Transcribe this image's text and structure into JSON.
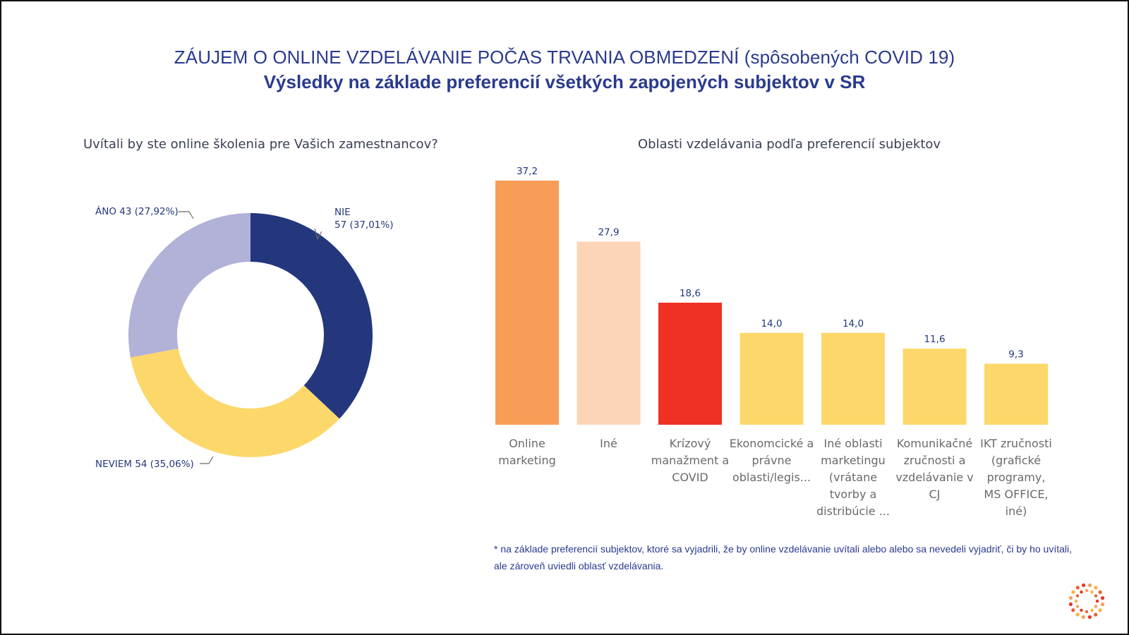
{
  "header": {
    "title": "ZÁUJEM O ONLINE VZDELÁVANIE POČAS TRVANIA OBMEDZENÍ (spôsobených COVID 19)",
    "subtitle": "Výsledky na základe preferencií všetkých zapojených subjektov v SR"
  },
  "footnote": "* na základe preferencií subjektov, ktoré sa vyjadrili, že by online vzdelávanie uvítali alebo alebo sa nevedeli vyjadriť, či by ho uvítali, ale zároveň uviedli oblasť vzdelávania.",
  "logo_icon": "dotted-circle-logo-icon",
  "colors": {
    "title": "#2a3a8f",
    "nie": "#24377d",
    "neviem": "#fcd86b",
    "ano": "#b2b1d8",
    "bar_orange": "#f89d57",
    "bar_peach": "#fcd5b8",
    "bar_red": "#ee3124",
    "bar_yellow": "#fcd86b"
  },
  "chart_data": [
    {
      "type": "pie",
      "title": "Uvítali by ste online školenia pre Vašich zamestnancov?",
      "slices": [
        {
          "name": "NIE",
          "value": 57,
          "percent": "37,01%",
          "label_lines": [
            "NIE",
            "57 (37,01%)"
          ],
          "color": "#24377d"
        },
        {
          "name": "NEVIEM",
          "value": 54,
          "percent": "35,06%",
          "label_lines": [
            "NEVIEM 54 (35,06%)"
          ],
          "color": "#fcd86b"
        },
        {
          "name": "ÁNO",
          "value": 43,
          "percent": "27,92%",
          "label_lines": [
            "ÁNO 43 (27,92%)"
          ],
          "color": "#b2b1d8"
        }
      ]
    },
    {
      "type": "bar",
      "title": "Oblasti vzdelávania podľa preferencií subjektov",
      "categories": [
        [
          "Online",
          "marketing"
        ],
        [
          "Iné"
        ],
        [
          "Krízový",
          "manažment a",
          "COVID"
        ],
        [
          "Ekonomcické a",
          "právne",
          "oblasti/legis..."
        ],
        [
          "Iné oblasti",
          "marketingu",
          "(vrátane",
          "tvorby a",
          "distribúcie ..."
        ],
        [
          "Komunikačné",
          "zručnosti a",
          "vzdelávanie v",
          "CJ"
        ],
        [
          "IKT zručnosti",
          "(grafické",
          "programy,",
          "MS OFFICE,",
          "iné)"
        ]
      ],
      "values": [
        37.2,
        27.9,
        18.6,
        14.0,
        14.0,
        11.6,
        9.3
      ],
      "value_labels": [
        "37,2",
        "27,9",
        "18,6",
        "14,0",
        "14,0",
        "11,6",
        "9,3"
      ],
      "colors": [
        "#f89d57",
        "#fcd5b8",
        "#ee3124",
        "#fcd86b",
        "#fcd86b",
        "#fcd86b",
        "#fcd86b"
      ],
      "ylim": [
        0,
        37.2
      ],
      "grid": false
    }
  ]
}
